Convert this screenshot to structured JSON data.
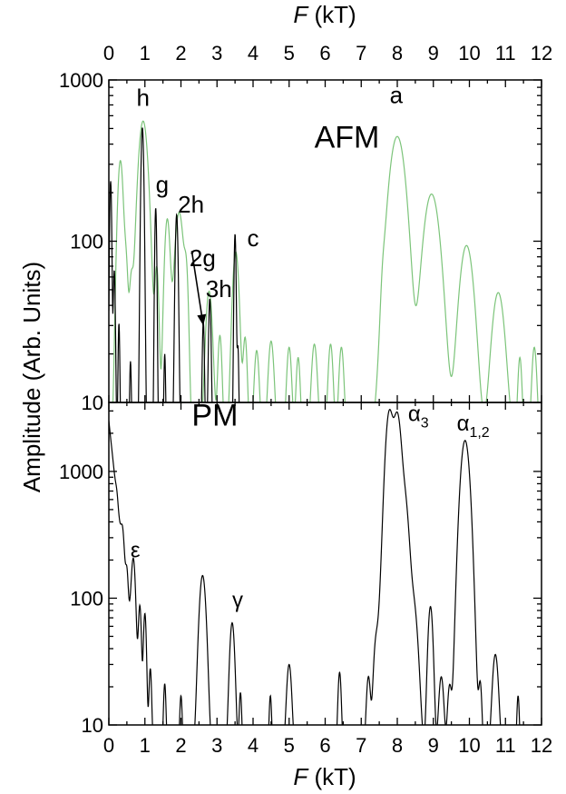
{
  "chart_data": [
    {
      "type": "line",
      "panel_label": "AFM",
      "x_label_italic": "F",
      "x_label_unit": " (kT)",
      "xlim": [
        0,
        12
      ],
      "x_ticks": [
        "0",
        "1",
        "2",
        "3",
        "4",
        "5",
        "6",
        "7",
        "8",
        "9",
        "10",
        "11",
        "12"
      ],
      "ylabel": "Amplitude (Arb. Units)",
      "yscale": "log",
      "ylim": [
        10,
        1000
      ],
      "y_tick_labels": [
        "10",
        "100",
        "1000"
      ],
      "series": [
        {
          "color": "#7cc47a",
          "peaks": [
            {
              "x": 0.32,
              "y": 310,
              "w": 0.07
            },
            {
              "x": 0.48,
              "y": 60,
              "w": 0.05
            },
            {
              "x": 0.62,
              "y": 45,
              "w": 0.05
            },
            {
              "x": 0.95,
              "y": 550,
              "w": 0.12
            },
            {
              "x": 1.33,
              "y": 60,
              "w": 0.05
            },
            {
              "x": 1.62,
              "y": 130,
              "w": 0.07
            },
            {
              "x": 1.95,
              "y": 145,
              "w": 0.11
            },
            {
              "x": 2.15,
              "y": 45,
              "w": 0.05
            },
            {
              "x": 2.78,
              "y": 43,
              "w": 0.08
            },
            {
              "x": 3.08,
              "y": 20,
              "w": 0.05
            },
            {
              "x": 3.52,
              "y": 80,
              "w": 0.08
            },
            {
              "x": 3.78,
              "y": 19,
              "w": 0.05
            },
            {
              "x": 4.1,
              "y": 15,
              "w": 0.06
            },
            {
              "x": 4.5,
              "y": 18,
              "w": 0.07
            },
            {
              "x": 5.0,
              "y": 16,
              "w": 0.06
            },
            {
              "x": 5.25,
              "y": 13,
              "w": 0.05
            },
            {
              "x": 5.7,
              "y": 17,
              "w": 0.07
            },
            {
              "x": 6.15,
              "y": 17,
              "w": 0.06
            },
            {
              "x": 6.45,
              "y": 16,
              "w": 0.06
            },
            {
              "x": 7.6,
              "y": 14,
              "w": 0.05
            },
            {
              "x": 8.0,
              "y": 440,
              "w": 0.2
            },
            {
              "x": 8.95,
              "y": 190,
              "w": 0.2
            },
            {
              "x": 9.92,
              "y": 88,
              "w": 0.17
            },
            {
              "x": 10.8,
              "y": 42,
              "w": 0.15
            },
            {
              "x": 11.4,
              "y": 13,
              "w": 0.05
            },
            {
              "x": 11.8,
              "y": 16,
              "w": 0.06
            }
          ]
        },
        {
          "color": "#000000",
          "peaks": [
            {
              "x": 0.05,
              "y": 230,
              "w": 0.025
            },
            {
              "x": 0.15,
              "y": 60,
              "w": 0.025
            },
            {
              "x": 0.28,
              "y": 25,
              "w": 0.02
            },
            {
              "x": 0.6,
              "y": 12,
              "w": 0.02
            },
            {
              "x": 0.93,
              "y": 500,
              "w": 0.035
            },
            {
              "x": 1.3,
              "y": 155,
              "w": 0.025
            },
            {
              "x": 1.55,
              "y": 14,
              "w": 0.02
            },
            {
              "x": 1.88,
              "y": 140,
              "w": 0.035
            },
            {
              "x": 2.62,
              "y": 26,
              "w": 0.025
            },
            {
              "x": 2.8,
              "y": 38,
              "w": 0.03
            },
            {
              "x": 3.5,
              "y": 105,
              "w": 0.025
            },
            {
              "x": 3.58,
              "y": 16,
              "w": 0.02
            }
          ]
        }
      ],
      "annotations": [
        {
          "text": "h",
          "x": 0.95,
          "y": 690
        },
        {
          "text": "g",
          "x": 1.48,
          "y": 200
        },
        {
          "text": "2h",
          "x": 2.28,
          "y": 150
        },
        {
          "text": "c",
          "x": 4.0,
          "y": 93
        },
        {
          "text": "2g",
          "x": 2.6,
          "y": 70
        },
        {
          "text": "3h",
          "x": 3.05,
          "y": 45
        },
        {
          "text": "AFM",
          "x": 5.7,
          "y": 380
        },
        {
          "text": "a",
          "x": 7.97,
          "y": 720
        }
      ],
      "arrow": {
        "from_x": 2.3,
        "from_y": 87,
        "to_x": 2.62,
        "to_y": 30
      }
    },
    {
      "type": "line",
      "panel_label": "PM",
      "x_label_italic": "F",
      "x_label_unit": " (kT)",
      "xlim": [
        0,
        12
      ],
      "x_ticks": [
        "0",
        "1",
        "2",
        "3",
        "4",
        "5",
        "6",
        "7",
        "8",
        "9",
        "10",
        "11",
        "12"
      ],
      "yscale": "log",
      "ylim": [
        10,
        3500
      ],
      "y_tick_labels": [
        "10",
        "100",
        "1000"
      ],
      "series": [
        {
          "color": "#000000",
          "background": {
            "amplitude": 2500,
            "decay": 0.16
          },
          "peaks": [
            {
              "x": 0.22,
              "y": 80,
              "w": 0.03
            },
            {
              "x": 0.38,
              "y": 130,
              "w": 0.04
            },
            {
              "x": 0.5,
              "y": 60,
              "w": 0.03
            },
            {
              "x": 0.68,
              "y": 165,
              "w": 0.05
            },
            {
              "x": 0.86,
              "y": 70,
              "w": 0.035
            },
            {
              "x": 1.0,
              "y": 65,
              "w": 0.035
            },
            {
              "x": 1.15,
              "y": 20,
              "w": 0.03
            },
            {
              "x": 1.55,
              "y": 15,
              "w": 0.03
            },
            {
              "x": 2.0,
              "y": 11,
              "w": 0.03
            },
            {
              "x": 2.6,
              "y": 145,
              "w": 0.08
            },
            {
              "x": 3.42,
              "y": 58,
              "w": 0.06
            },
            {
              "x": 3.65,
              "y": 12,
              "w": 0.03
            },
            {
              "x": 4.48,
              "y": 11,
              "w": 0.03
            },
            {
              "x": 5.0,
              "y": 24,
              "w": 0.06
            },
            {
              "x": 6.4,
              "y": 20,
              "w": 0.04
            },
            {
              "x": 7.2,
              "y": 18,
              "w": 0.05
            },
            {
              "x": 7.4,
              "y": 30,
              "w": 0.06
            },
            {
              "x": 7.6,
              "y": 100,
              "w": 0.1
            },
            {
              "x": 7.78,
              "y": 2900,
              "w": 0.09
            },
            {
              "x": 8.0,
              "y": 2700,
              "w": 0.09
            },
            {
              "x": 8.2,
              "y": 600,
              "w": 0.1
            },
            {
              "x": 8.45,
              "y": 80,
              "w": 0.1
            },
            {
              "x": 8.92,
              "y": 80,
              "w": 0.06
            },
            {
              "x": 9.22,
              "y": 18,
              "w": 0.06
            },
            {
              "x": 9.45,
              "y": 14,
              "w": 0.05
            },
            {
              "x": 9.88,
              "y": 1750,
              "w": 0.11
            },
            {
              "x": 10.3,
              "y": 15,
              "w": 0.04
            },
            {
              "x": 10.72,
              "y": 30,
              "w": 0.07
            },
            {
              "x": 11.35,
              "y": 11,
              "w": 0.03
            }
          ]
        }
      ],
      "annotations": [
        {
          "greek": "ε",
          "sub": "",
          "x": 0.6,
          "y": 210
        },
        {
          "greek": "γ",
          "sub": "",
          "x": 3.42,
          "y": 85
        },
        {
          "greek": "α",
          "sub": "3",
          "x": 8.3,
          "y": 2500
        },
        {
          "greek": "α",
          "sub": "1,2",
          "x": 9.65,
          "y": 2100
        },
        {
          "text": "PM",
          "x": 2.3,
          "y": 2300
        }
      ]
    }
  ]
}
